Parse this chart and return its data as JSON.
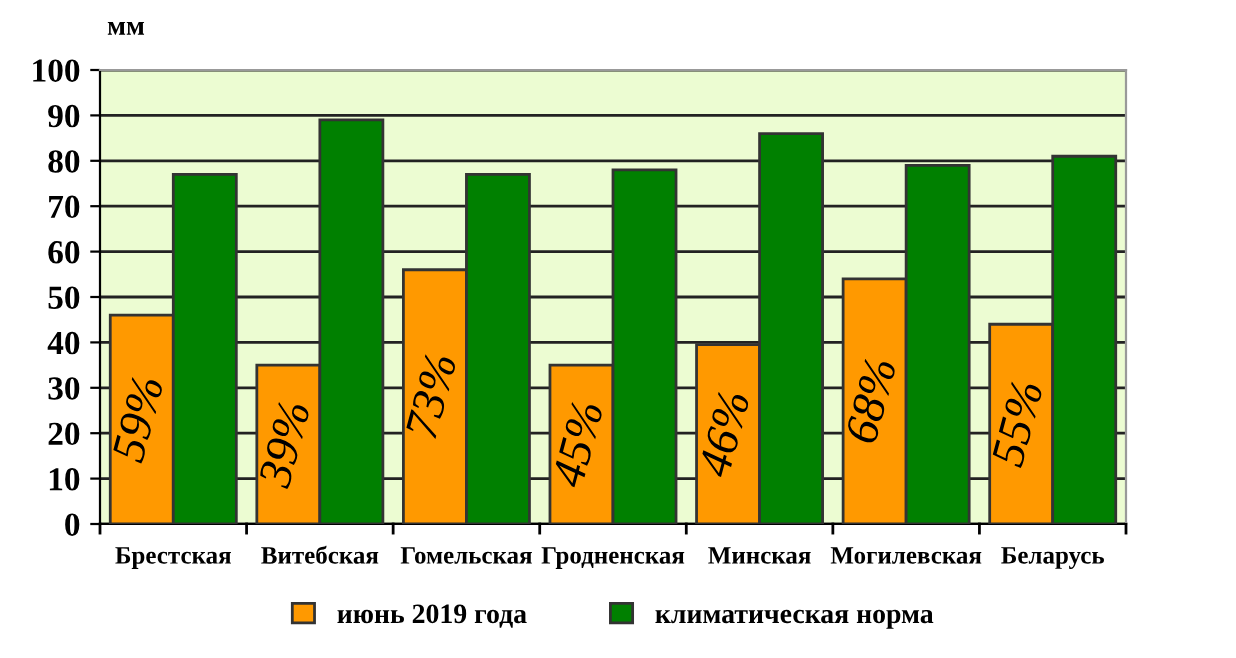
{
  "chart_data": {
    "type": "bar",
    "ylabel": "мм",
    "categories": [
      "Брестская",
      "Витебская",
      "Гомельская",
      "Гродненская",
      "Минская",
      "Могилевская",
      "Беларусь"
    ],
    "series": [
      {
        "name": "июнь 2019 года",
        "color": "#ff9900",
        "values": [
          46,
          35,
          56,
          35,
          39.5,
          54,
          44
        ]
      },
      {
        "name": "климатическая норма",
        "color": "#008000",
        "values": [
          77,
          89,
          77,
          78,
          86,
          79,
          81
        ]
      }
    ],
    "annotations": [
      {
        "text": "59%",
        "x": "Брестская",
        "y": 46
      },
      {
        "text": "39%",
        "x": "Витебская",
        "y": 35
      },
      {
        "text": "73%",
        "x": "Гомельская",
        "y": 56
      },
      {
        "text": "45%",
        "x": "Гродненская",
        "y": 35
      },
      {
        "text": "46%",
        "x": "Минская",
        "y": 39.5
      },
      {
        "text": "68%",
        "x": "Могилевская",
        "y": 54
      },
      {
        "text": "55%",
        "x": "Беларусь",
        "y": 44
      }
    ],
    "ylim": [
      0,
      100
    ],
    "yticks": [
      0,
      10,
      20,
      30,
      40,
      50,
      60,
      70,
      80,
      90,
      100
    ],
    "grid": "y",
    "legend": "bottom"
  }
}
